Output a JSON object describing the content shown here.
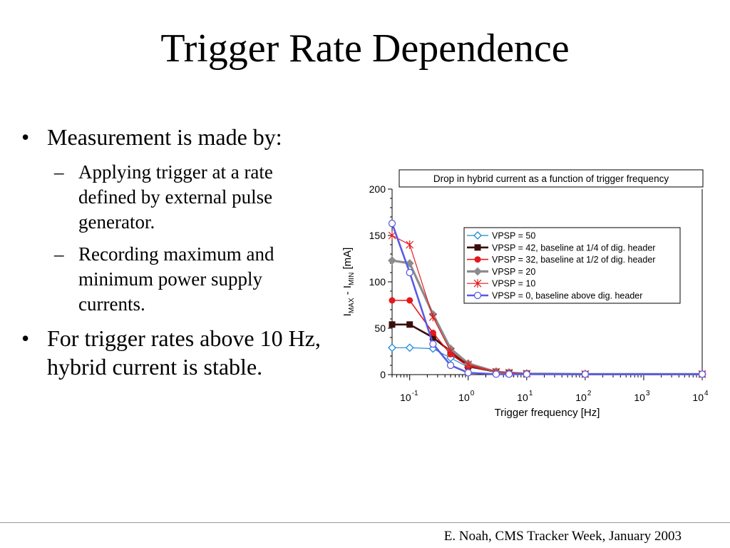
{
  "slide": {
    "title": "Trigger Rate Dependence",
    "footer": "E. Noah, CMS Tracker Week, January 2003"
  },
  "bullets": [
    {
      "text": "Measurement is made by:",
      "sub": [
        "Applying trigger at a rate defined by external pulse generator.",
        "Recording maximum and minimum power supply currents."
      ]
    },
    {
      "text": "For trigger rates above 10 Hz, hybrid current is stable.",
      "sub": []
    }
  ],
  "bullet_marks": {
    "main": "•",
    "sub": "–"
  },
  "chart_data": {
    "type": "line",
    "title": "Drop in hybrid current as a function of trigger frequency",
    "xlabel": "Trigger frequency [Hz]",
    "ylabel": {
      "prefix": "I",
      "sub1": "MAX",
      "middle": " - I",
      "sub2": "MIN",
      "suffix": " [mA]"
    },
    "x_scale": "log",
    "xlim": [
      0.05,
      10000
    ],
    "ylim": [
      0,
      200
    ],
    "yticks": [
      0,
      50,
      100,
      150,
      200
    ],
    "xticks": [
      {
        "value": 0.1,
        "base": "10",
        "exp": "-1"
      },
      {
        "value": 1,
        "base": "10",
        "exp": "0"
      },
      {
        "value": 10,
        "base": "10",
        "exp": "1"
      },
      {
        "value": 100,
        "base": "10",
        "exp": "2"
      },
      {
        "value": 1000,
        "base": "10",
        "exp": "3"
      },
      {
        "value": 10000,
        "base": "10",
        "exp": "4"
      }
    ],
    "grid": false,
    "legend_position": "top-right",
    "series": [
      {
        "name": "VPSP = 50",
        "color": "#1a8ad4",
        "marker": "open-diamond",
        "x": [
          0.05,
          0.1,
          0.25,
          0.5,
          1,
          3,
          5,
          10,
          100,
          10000
        ],
        "y": [
          29,
          29,
          28,
          18,
          8,
          3,
          2,
          1,
          0.5,
          0.5
        ]
      },
      {
        "name": "VPSP = 42, baseline at 1/4 of dig. header",
        "color": "#3a0d0d",
        "marker": "filled-square",
        "x": [
          0.05,
          0.1,
          0.25,
          0.5,
          1,
          3,
          5,
          10,
          100,
          10000
        ],
        "y": [
          54,
          54,
          40,
          25,
          9,
          3,
          2,
          1,
          0.5,
          0.5
        ]
      },
      {
        "name": "VPSP = 32, baseline at 1/2 of dig. header",
        "color": "#e31a1c",
        "marker": "filled-circle",
        "x": [
          0.05,
          0.1,
          0.25,
          0.5,
          1,
          3,
          5,
          10,
          100,
          10000
        ],
        "y": [
          80,
          80,
          45,
          22,
          9,
          3,
          2,
          1,
          0.5,
          0.5
        ]
      },
      {
        "name": "VPSP = 20",
        "color": "#8c8c8c",
        "marker": "filled-diamond",
        "x": [
          0.05,
          0.1,
          0.25,
          0.5,
          1,
          3,
          5,
          10,
          100,
          10000
        ],
        "y": [
          123,
          120,
          65,
          28,
          12,
          3,
          2,
          1,
          0.5,
          0.5
        ]
      },
      {
        "name": "VPSP = 10",
        "color": "#e31a1c",
        "marker": "star",
        "x": [
          0.05,
          0.1,
          0.25,
          0.5,
          1,
          3,
          5,
          10,
          100,
          10000
        ],
        "y": [
          150,
          140,
          62,
          25,
          11,
          3,
          2,
          1,
          0.5,
          0.5
        ]
      },
      {
        "name": "VPSP = 0, baseline above dig. header",
        "color": "#5a5ae6",
        "marker": "open-circle",
        "x": [
          0.05,
          0.1,
          0.25,
          0.5,
          1,
          3,
          5,
          10,
          100,
          10000
        ],
        "y": [
          163,
          110,
          33,
          10,
          2,
          0.5,
          0.5,
          0.5,
          0.5,
          0.5
        ]
      }
    ]
  }
}
